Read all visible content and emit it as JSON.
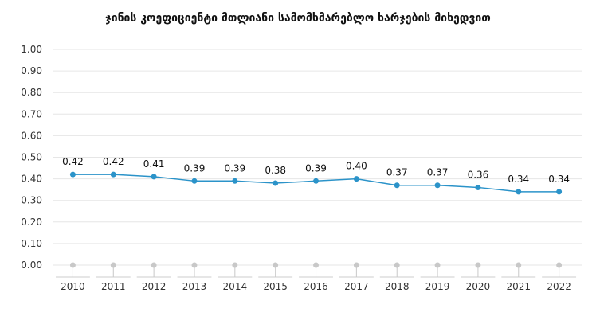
{
  "chart_data": {
    "type": "line",
    "title": "ჯინის კოეფიციენტი მთლიანი სამომხმარებლო ხარჯების მიხედვით",
    "categories": [
      "2010",
      "2011",
      "2012",
      "2013",
      "2014",
      "2015",
      "2016",
      "2017",
      "2018",
      "2019",
      "2020",
      "2021",
      "2022"
    ],
    "series": [
      {
        "values": [
          0.42,
          0.42,
          0.41,
          0.39,
          0.39,
          0.38,
          0.39,
          0.4,
          0.37,
          0.37,
          0.36,
          0.34,
          0.34
        ],
        "data_labels": [
          "0.42",
          "0.42",
          "0.41",
          "0.39",
          "0.39",
          "0.38",
          "0.39",
          "0.40",
          "0.37",
          "0.37",
          "0.36",
          "0.34",
          "0.34"
        ]
      }
    ],
    "ylim": [
      0,
      1
    ],
    "y_ticks": [
      "1.00",
      "0.90",
      "0.80",
      "0.70",
      "0.60",
      "0.50",
      "0.40",
      "0.30",
      "0.20",
      "0.10",
      "0.00"
    ],
    "grid": true,
    "colors": {
      "line": "#2b93c9",
      "grid": "#e6e6e6",
      "axis": "#cccccc",
      "marker_baseline": "#c8c8c8"
    }
  }
}
